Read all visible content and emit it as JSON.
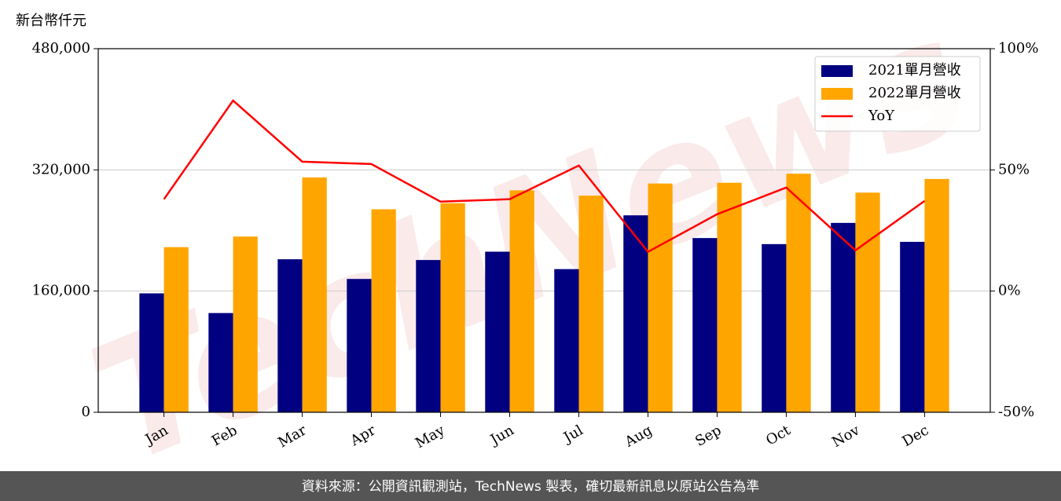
{
  "chart_data": {
    "type": "bar-line",
    "y_label": "新台幣仟元",
    "watermark": "TechNews",
    "source": "資料來源：公開資訊觀測站，TechNews 製表，確切最新訊息以原站公告為準",
    "categories": [
      "Jan",
      "Feb",
      "Mar",
      "Apr",
      "May",
      "Jun",
      "Jul",
      "Aug",
      "Sep",
      "Oct",
      "Nov",
      "Dec"
    ],
    "series": [
      {
        "name": "2021單月營收",
        "type": "bar",
        "color": "#000080",
        "values": [
          157000,
          131000,
          202000,
          176000,
          201000,
          212000,
          189000,
          260000,
          230000,
          222000,
          250000,
          225000
        ]
      },
      {
        "name": "2022單月營收",
        "type": "bar",
        "color": "#ffa500",
        "values": [
          218000,
          232000,
          310000,
          268000,
          276000,
          293000,
          286000,
          302000,
          303000,
          315000,
          290000,
          308000
        ]
      },
      {
        "name": "YoY",
        "type": "line",
        "axis": "y2",
        "color": "#ff0000",
        "values": [
          37.9,
          78.6,
          53.4,
          52.4,
          36.9,
          37.9,
          51.8,
          16.2,
          31.7,
          42.7,
          16.8,
          37.2
        ]
      }
    ],
    "ylim": [
      0,
      480000
    ],
    "yticks": [
      0,
      {
        "value": 160000,
        "label": "160,000"
      },
      {
        "value": 320000,
        "label": "320,000"
      },
      {
        "value": 480000,
        "label": "480,000"
      }
    ],
    "y2lim": [
      -50,
      100
    ],
    "y2ticks": [
      {
        "value": -50,
        "label": "-50%"
      },
      {
        "value": 0,
        "label": "0%"
      },
      {
        "value": 50,
        "label": "50%"
      },
      {
        "value": 100,
        "label": "100%"
      }
    ],
    "grid": true,
    "legend": "upper right"
  }
}
